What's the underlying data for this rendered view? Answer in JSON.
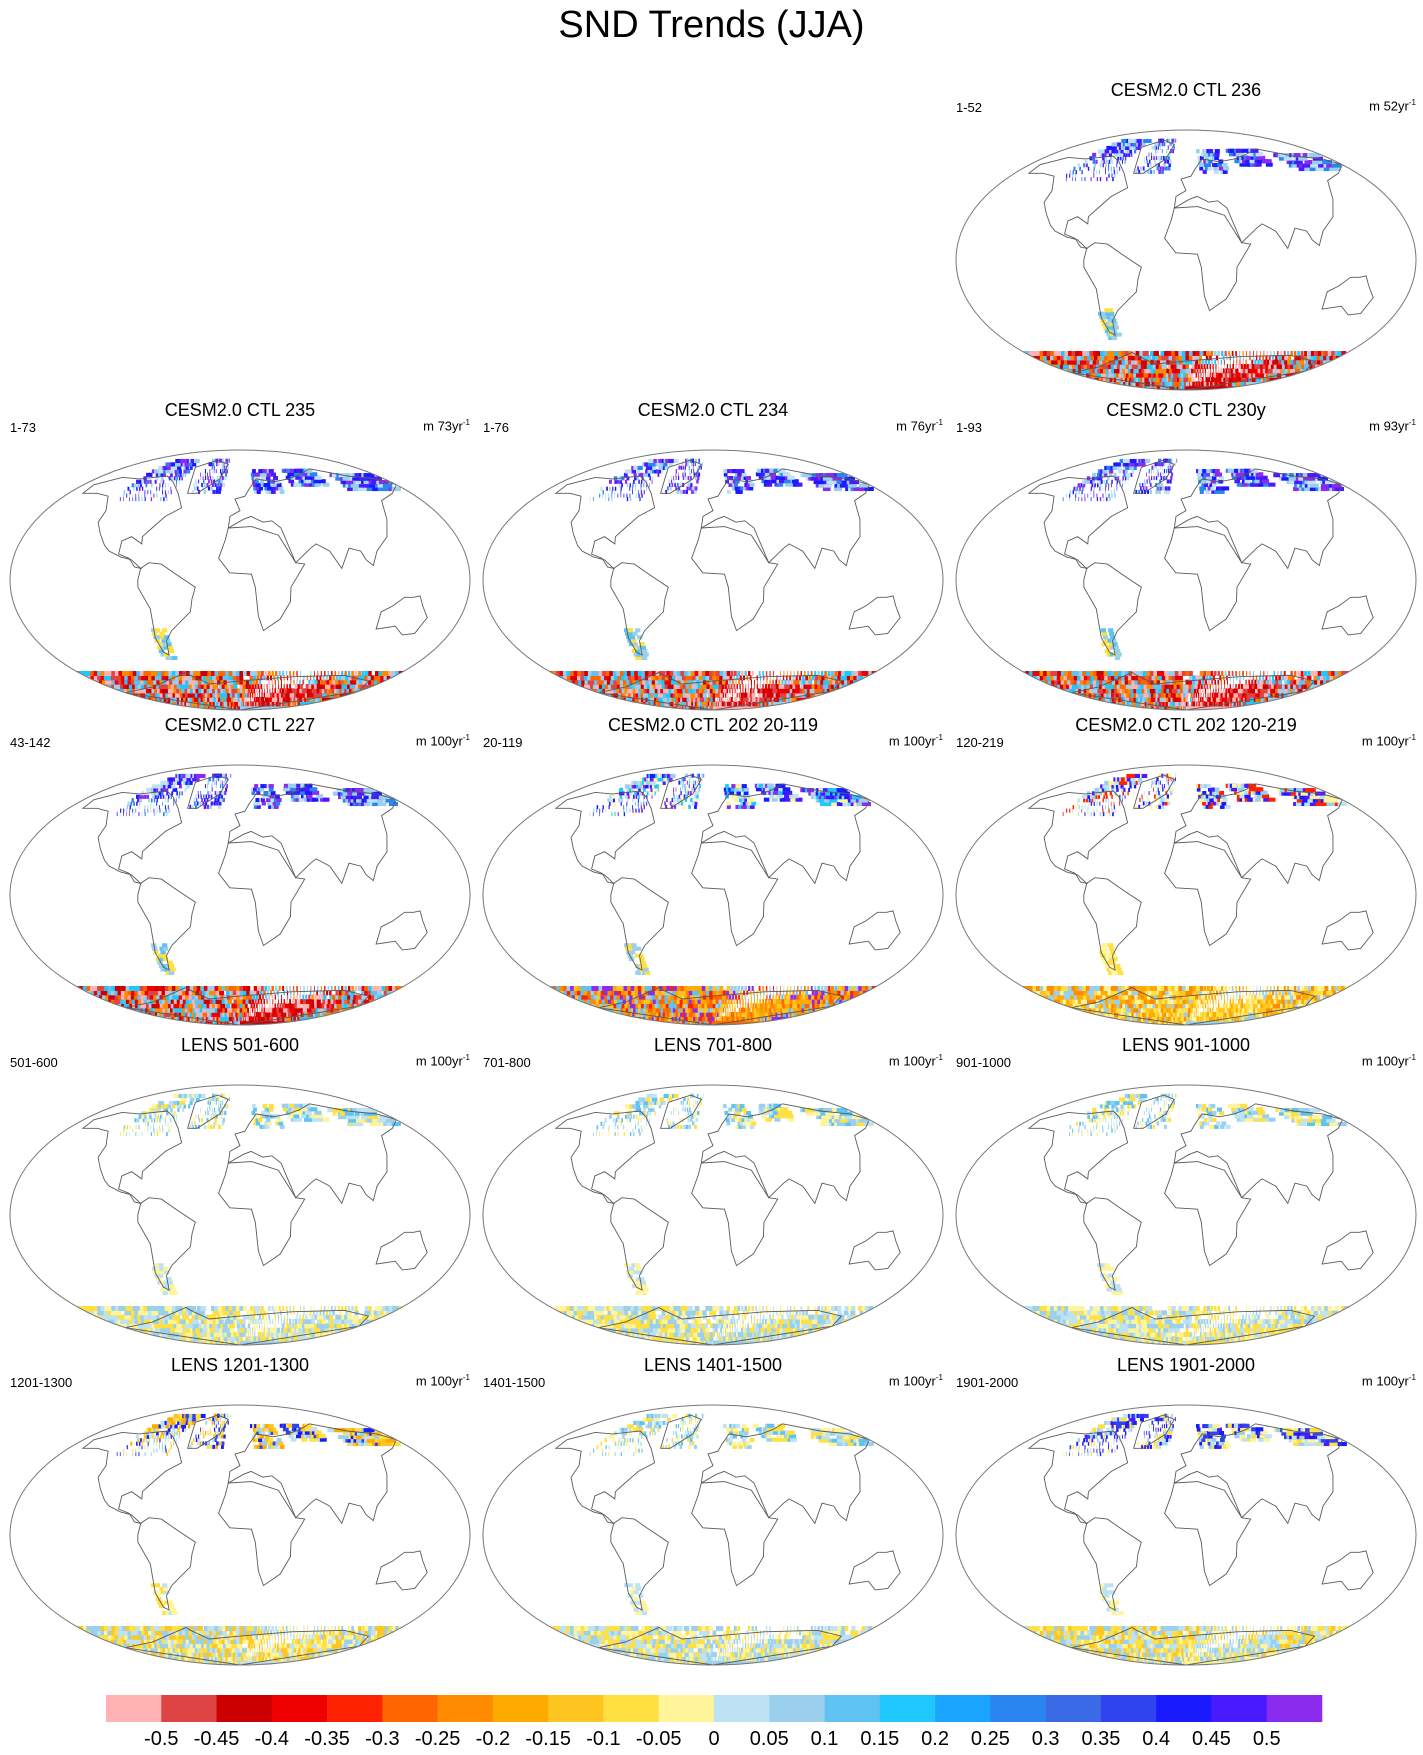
{
  "title": "SND Trends (JJA)",
  "colors": {
    "map_outline": "#777777",
    "coast": "#5a5a5a"
  },
  "panels": [
    {
      "title": "CESM2.0 CTL 236",
      "left_label": "1-52",
      "right_label": "m 52yr",
      "right_sup": "-1",
      "style": "ctl_strong"
    },
    {
      "title": "CESM2.0 CTL 235",
      "left_label": "1-73",
      "right_label": "m 73yr",
      "right_sup": "-1",
      "style": "ctl_strong"
    },
    {
      "title": "CESM2.0 CTL 234",
      "left_label": "1-76",
      "right_label": "m 76yr",
      "right_sup": "-1",
      "style": "ctl_strong"
    },
    {
      "title": "CESM2.0 CTL 230y",
      "left_label": "1-93",
      "right_label": "m 93yr",
      "right_sup": "-1",
      "style": "ctl_strong"
    },
    {
      "title": "CESM2.0 CTL 227",
      "left_label": "43-142",
      "right_label": "m 100yr",
      "right_sup": "-1",
      "style": "ctl_strong"
    },
    {
      "title": "CESM2.0 CTL 202 20-119",
      "left_label": "20-119",
      "right_label": "m 100yr",
      "right_sup": "-1",
      "style": "ctl_orange"
    },
    {
      "title": "CESM2.0 CTL 202 120-219",
      "left_label": "120-219",
      "right_label": "m 100yr",
      "right_sup": "-1",
      "style": "ctl_yellow"
    },
    {
      "title": "LENS 501-600",
      "left_label": "501-600",
      "right_label": "m 100yr",
      "right_sup": "-1",
      "style": "lens"
    },
    {
      "title": "LENS 701-800",
      "left_label": "701-800",
      "right_label": "m 100yr",
      "right_sup": "-1",
      "style": "lens"
    },
    {
      "title": "LENS 901-1000",
      "left_label": "901-1000",
      "right_label": "m 100yr",
      "right_sup": "-1",
      "style": "lens"
    },
    {
      "title": "LENS 1201-1300",
      "left_label": "1201-1300",
      "right_label": "m 100yr",
      "right_sup": "-1",
      "style": "lens_warm"
    },
    {
      "title": "LENS 1401-1500",
      "left_label": "1401-1500",
      "right_label": "m 100yr",
      "right_sup": "-1",
      "style": "lens"
    },
    {
      "title": "LENS 1901-2000",
      "left_label": "1901-2000",
      "right_label": "m 100yr",
      "right_sup": "-1",
      "style": "lens_blue"
    }
  ],
  "colorbar": {
    "ticks": [
      "-0.5",
      "-0.45",
      "-0.4",
      "-0.35",
      "-0.3",
      "-0.25",
      "-0.2",
      "-0.15",
      "-0.1",
      "-0.05",
      "0",
      "0.05",
      "0.1",
      "0.15",
      "0.2",
      "0.25",
      "0.3",
      "0.35",
      "0.4",
      "0.45",
      "0.5"
    ],
    "colors": [
      "#ffb3b3",
      "#dd4444",
      "#cc0000",
      "#ee0000",
      "#ff2200",
      "#ff6600",
      "#ff8c00",
      "#ffaa00",
      "#ffc622",
      "#ffe040",
      "#fff49a",
      "#bde2f4",
      "#9ad0ee",
      "#5ec3f0",
      "#1ec8ff",
      "#1aa3ff",
      "#2a85f0",
      "#3a6ae6",
      "#2f44ee",
      "#1a1aff",
      "#4a1aff",
      "#8a2bee"
    ]
  }
}
